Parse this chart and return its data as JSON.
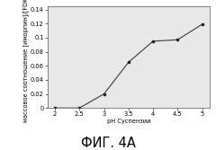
{
  "x": [
    2.0,
    2.5,
    3.0,
    3.5,
    4.0,
    4.5,
    5.0
  ],
  "y": [
    0.0,
    0.0,
    0.02,
    0.065,
    0.095,
    0.097,
    0.119
  ],
  "xlabel": "pH Суспензии",
  "ylabel": "массовое соотношение [иморпин]/[FDKP]",
  "caption": "ФИГ. 4А",
  "xlim": [
    1.85,
    5.15
  ],
  "ylim": [
    0,
    0.145
  ],
  "xticks": [
    2.0,
    2.5,
    3.0,
    3.5,
    4.0,
    4.5,
    5.0
  ],
  "xticklabels": [
    "2",
    "2.5",
    "3",
    "3.5",
    "4",
    "4.5",
    "5"
  ],
  "yticks": [
    0,
    0.02,
    0.04,
    0.06,
    0.08,
    0.1,
    0.12,
    0.14
  ],
  "yticklabels": [
    "0",
    "0.02",
    "0.04",
    "0.06",
    "0.08",
    "0.1",
    "0.12",
    "0.14"
  ],
  "bg_color": "#e8e8e8",
  "line_color": "#444444",
  "marker_color": "#222222",
  "axis_label_fontsize": 4.8,
  "tick_fontsize": 4.8,
  "caption_fontsize": 10.5
}
